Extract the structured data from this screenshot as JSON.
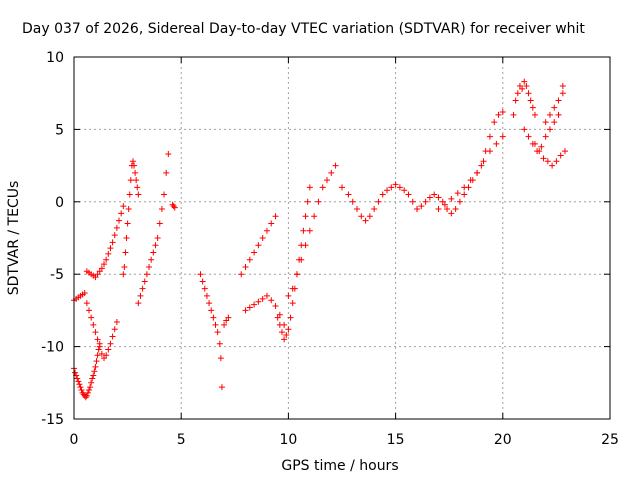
{
  "chart_data": {
    "type": "scatter",
    "title": "Day 037 of 2026, Sidereal Day-to-day VTEC variation (SDTVAR) for receiver whit",
    "xlabel": "GPS time / hours",
    "ylabel": "SDTVAR / TECUs",
    "xlim": [
      0,
      25
    ],
    "ylim": [
      -15,
      10
    ],
    "xticks": [
      0,
      5,
      10,
      15,
      20,
      25
    ],
    "xtick_labels": [
      "0",
      "5",
      "10",
      "15",
      "20",
      "25"
    ],
    "yticks": [
      -15,
      -10,
      -5,
      0,
      5,
      10
    ],
    "ytick_labels": [
      "-15",
      "-10",
      "-5",
      "0",
      "5",
      "10"
    ],
    "grid": true,
    "legend": "none",
    "marker": "plus",
    "color": "#ff0000",
    "series": [
      {
        "x": [
          0.0,
          0.05,
          0.1,
          0.15,
          0.2,
          0.25,
          0.3,
          0.35,
          0.4,
          0.45,
          0.5,
          0.55,
          0.6,
          0.65,
          0.7,
          0.75,
          0.8,
          0.85,
          0.9,
          0.95,
          1.0,
          1.05,
          1.1,
          1.15,
          1.2,
          0.0,
          0.1,
          0.2,
          0.3,
          0.4,
          0.5,
          0.6,
          0.7,
          0.8,
          0.9,
          1.0,
          1.1,
          1.2,
          1.3,
          1.4,
          1.5,
          1.6,
          1.7,
          1.8,
          1.9,
          2.0,
          0.6,
          0.7,
          0.8,
          0.9,
          1.0,
          1.1,
          1.2,
          1.3,
          1.4,
          1.5,
          1.6,
          1.7,
          1.8,
          1.9,
          2.0,
          2.1,
          2.2,
          2.3,
          2.3,
          2.35,
          2.4,
          2.45,
          2.5,
          2.55,
          2.6,
          2.65,
          2.7,
          2.75,
          2.8,
          2.85,
          2.9,
          2.95,
          3.0,
          3.0,
          3.1,
          3.2,
          3.3,
          3.4,
          3.5,
          3.6,
          3.7,
          3.8,
          3.9,
          4.0,
          4.1,
          4.2,
          4.3,
          4.4,
          4.6,
          4.65,
          4.7,
          5.9,
          6.0,
          6.1,
          6.2,
          6.3,
          6.4,
          6.5,
          6.6,
          6.7,
          6.8,
          6.85,
          6.9,
          7.0,
          7.1,
          7.2,
          7.8,
          8.0,
          8.2,
          8.4,
          8.6,
          8.8,
          9.0,
          9.2,
          9.4,
          8.0,
          8.2,
          8.4,
          8.6,
          8.8,
          9.0,
          9.2,
          9.4,
          9.6,
          9.8,
          9.5,
          9.6,
          9.7,
          9.8,
          9.9,
          10.0,
          10.1,
          10.2,
          10.3,
          10.4,
          10.5,
          10.6,
          10.7,
          10.8,
          10.9,
          11.0,
          10.0,
          10.2,
          10.4,
          10.6,
          10.8,
          11.0,
          11.2,
          11.4,
          11.6,
          11.8,
          12.0,
          12.2,
          12.5,
          12.8,
          13.0,
          13.2,
          13.4,
          13.6,
          13.8,
          14.0,
          14.2,
          14.4,
          14.6,
          14.8,
          15.0,
          15.2,
          15.4,
          15.6,
          15.8,
          16.0,
          16.0,
          16.2,
          16.4,
          16.6,
          16.8,
          17.0,
          17.2,
          17.4,
          17.6,
          17.8,
          18.0,
          18.2,
          18.4,
          18.6,
          18.8,
          19.0,
          19.2,
          19.4,
          19.6,
          19.8,
          20.0,
          17.0,
          17.3,
          17.6,
          17.9,
          18.2,
          18.5,
          18.8,
          19.1,
          19.4,
          19.7,
          20.0,
          20.5,
          20.6,
          20.7,
          20.8,
          20.9,
          21.0,
          21.1,
          21.2,
          21.3,
          21.4,
          21.5,
          21.0,
          21.2,
          21.4,
          21.6,
          21.8,
          22.0,
          22.2,
          22.4,
          22.6,
          22.8,
          21.5,
          21.7,
          21.9,
          22.1,
          22.3,
          22.5,
          22.7,
          22.9,
          22.0,
          22.2,
          22.4,
          22.6,
          22.8
        ],
        "y": [
          -11.5,
          -11.8,
          -12.0,
          -12.2,
          -12.4,
          -12.6,
          -12.8,
          -13.0,
          -13.2,
          -13.3,
          -13.4,
          -13.5,
          -13.4,
          -13.2,
          -13.0,
          -12.8,
          -12.5,
          -12.2,
          -12.0,
          -11.7,
          -11.4,
          -11.0,
          -10.6,
          -10.2,
          -9.8,
          -6.8,
          -6.7,
          -6.6,
          -6.5,
          -6.4,
          -6.3,
          -7.0,
          -7.5,
          -8.0,
          -8.5,
          -9.0,
          -9.5,
          -10.0,
          -10.5,
          -10.8,
          -10.6,
          -10.2,
          -9.8,
          -9.3,
          -8.8,
          -8.3,
          -4.8,
          -4.9,
          -5.0,
          -5.1,
          -5.2,
          -5.0,
          -4.8,
          -4.6,
          -4.3,
          -4.0,
          -3.6,
          -3.2,
          -2.8,
          -2.3,
          -1.8,
          -1.3,
          -0.8,
          -0.3,
          -5.0,
          -4.5,
          -3.5,
          -2.5,
          -1.5,
          -0.5,
          0.5,
          1.5,
          2.5,
          2.8,
          2.5,
          2.0,
          1.5,
          1.0,
          0.5,
          -7.0,
          -6.5,
          -6.0,
          -5.5,
          -5.0,
          -4.5,
          -4.0,
          -3.5,
          -3.0,
          -2.5,
          -1.5,
          -0.5,
          0.5,
          2.0,
          3.3,
          -0.2,
          -0.3,
          -0.4,
          -5.0,
          -5.5,
          -6.0,
          -6.5,
          -7.0,
          -7.5,
          -8.0,
          -8.5,
          -9.0,
          -9.8,
          -10.8,
          -12.8,
          -8.5,
          -8.2,
          -8.0,
          -5.0,
          -4.5,
          -4.0,
          -3.5,
          -3.0,
          -2.5,
          -2.0,
          -1.5,
          -1.0,
          -7.5,
          -7.3,
          -7.1,
          -6.9,
          -6.7,
          -6.5,
          -6.8,
          -7.2,
          -7.8,
          -8.5,
          -8.0,
          -8.5,
          -9.0,
          -9.5,
          -9.2,
          -8.8,
          -8.0,
          -7.0,
          -6.0,
          -5.0,
          -4.0,
          -3.0,
          -2.0,
          -1.0,
          0.0,
          1.0,
          -6.5,
          -6.0,
          -5.0,
          -4.0,
          -3.0,
          -2.0,
          -1.0,
          0.0,
          1.0,
          1.5,
          2.0,
          2.5,
          1.0,
          0.5,
          0.0,
          -0.5,
          -1.0,
          -1.3,
          -1.0,
          -0.5,
          0.0,
          0.5,
          0.8,
          1.0,
          1.2,
          1.0,
          0.8,
          0.5,
          0.0,
          -0.5,
          -0.5,
          -0.3,
          0.0,
          0.3,
          0.5,
          0.3,
          0.0,
          -0.5,
          -0.8,
          -0.5,
          0.0,
          0.5,
          1.0,
          1.5,
          2.0,
          2.5,
          3.5,
          4.5,
          5.5,
          6.0,
          6.2,
          -0.5,
          -0.2,
          0.2,
          0.6,
          1.0,
          1.5,
          2.0,
          2.8,
          3.5,
          4.0,
          4.5,
          6.0,
          7.0,
          7.5,
          8.0,
          7.8,
          8.3,
          8.0,
          7.5,
          7.0,
          6.5,
          6.0,
          5.0,
          4.5,
          4.0,
          3.5,
          3.8,
          4.5,
          5.0,
          5.5,
          6.0,
          7.5,
          4.0,
          3.5,
          3.0,
          2.8,
          2.5,
          2.8,
          3.2,
          3.5,
          5.5,
          6.0,
          6.5,
          7.0,
          8.0
        ]
      }
    ]
  }
}
